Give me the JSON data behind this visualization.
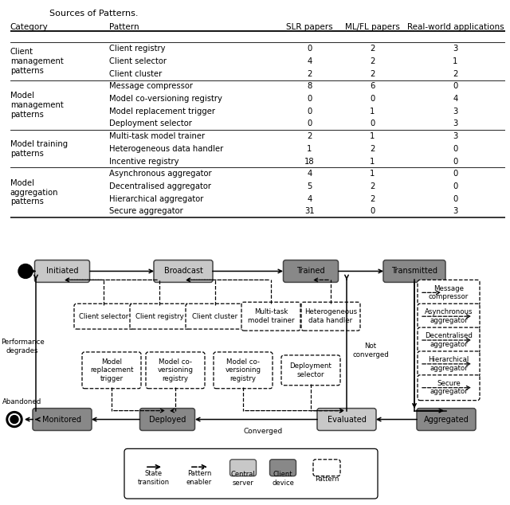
{
  "title": "Sources of Patterns.",
  "table_headers": [
    "Category",
    "Pattern",
    "SLR papers",
    "ML/FL papers",
    "Real-world applications"
  ],
  "table_rows": [
    [
      "Client\nmanagement\npatterns",
      "Client registry",
      "0",
      "2",
      "3"
    ],
    [
      "",
      "Client selector",
      "4",
      "2",
      "1"
    ],
    [
      "",
      "Client cluster",
      "2",
      "2",
      "2"
    ],
    [
      "Model\nmanagement\npatterns",
      "Message compressor",
      "8",
      "6",
      "0"
    ],
    [
      "",
      "Model co-versioning registry",
      "0",
      "0",
      "4"
    ],
    [
      "",
      "Model replacement trigger",
      "0",
      "1",
      "3"
    ],
    [
      "",
      "Deployment selector",
      "0",
      "0",
      "3"
    ],
    [
      "Model training\npatterns",
      "Multi-task model trainer",
      "2",
      "1",
      "3"
    ],
    [
      "",
      "Heterogeneous data handler",
      "1",
      "2",
      "0"
    ],
    [
      "",
      "Incentive registry",
      "18",
      "1",
      "0"
    ],
    [
      "Model\naggregation\npatterns",
      "Asynchronous aggregator",
      "4",
      "1",
      "0"
    ],
    [
      "",
      "Decentralised aggregator",
      "5",
      "2",
      "0"
    ],
    [
      "",
      "Hierarchical aggregator",
      "4",
      "2",
      "0"
    ],
    [
      "",
      "Secure aggregator",
      "31",
      "0",
      "3"
    ]
  ],
  "section_breaks": [
    3,
    7,
    10
  ],
  "light_gray": "#c8c8c8",
  "mid_gray": "#aaaaaa",
  "dark_gray": "#888888",
  "state_light": [
    "Initiated",
    "Broadcast",
    "Transmitted",
    "Monitored",
    "Deployed"
  ],
  "state_dark": [
    "Trained",
    "Evaluated",
    "Aggregated"
  ]
}
